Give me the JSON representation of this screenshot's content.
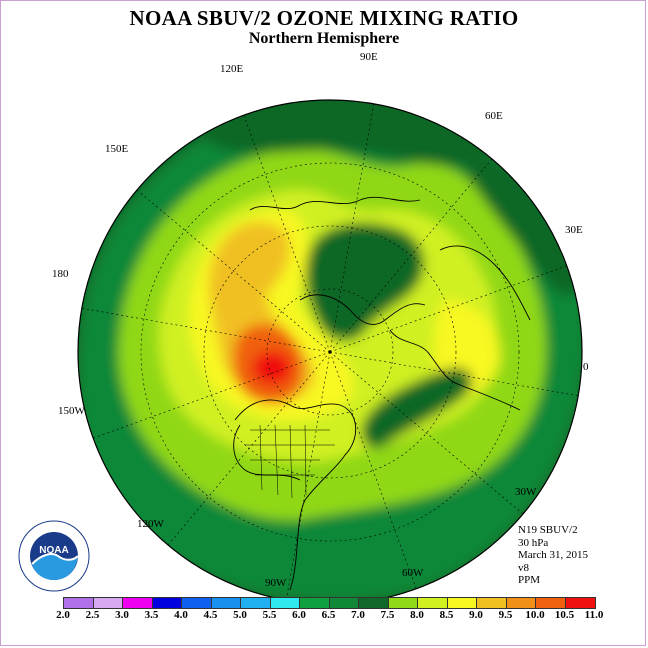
{
  "title": "NOAA SBUV/2 OZONE MIXING RATIO",
  "subtitle": "Northern Hemisphere",
  "longitude_labels": [
    "90E",
    "60E",
    "30E",
    "0",
    "30W",
    "60W",
    "90W",
    "120W",
    "150W",
    "180",
    "150E",
    "120E"
  ],
  "info": {
    "satellite": "N19 SBUV/2",
    "level": "30 hPa",
    "date": "March 31, 2015",
    "version": "v8",
    "units": "PPM"
  },
  "colorbar": {
    "labels": [
      "2.0",
      "2.5",
      "3.0",
      "3.5",
      "4.0",
      "4.5",
      "5.0",
      "5.5",
      "6.0",
      "6.5",
      "7.0",
      "7.5",
      "8.0",
      "8.5",
      "9.0",
      "9.5",
      "10.0",
      "10.5",
      "11.0"
    ],
    "colors": [
      "#b070e8",
      "#d8a8f0",
      "#f000f0",
      "#0000e0",
      "#1060f0",
      "#1890f0",
      "#20b0f0",
      "#30e8f0",
      "#10a040",
      "#108838",
      "#106828",
      "#90d818",
      "#d0f020",
      "#f8f820",
      "#f0c020",
      "#f09018",
      "#f06010",
      "#f01010",
      "#905030"
    ]
  },
  "map_colors": {
    "dark_green": "#106828",
    "mid_green": "#108838",
    "green": "#10a040",
    "lime": "#90d818",
    "yellow_green": "#d0f020",
    "yellow": "#f8f820",
    "gold": "#f0c020",
    "orange": "#f09018",
    "dark_orange": "#f06010",
    "red": "#f01010"
  },
  "logo": {
    "text": "NOAA",
    "ring_text": "NATIONAL OCEANIC AND ATMOSPHERIC ADMINISTRATION · U.S. DEPARTMENT OF COMMERCE"
  }
}
